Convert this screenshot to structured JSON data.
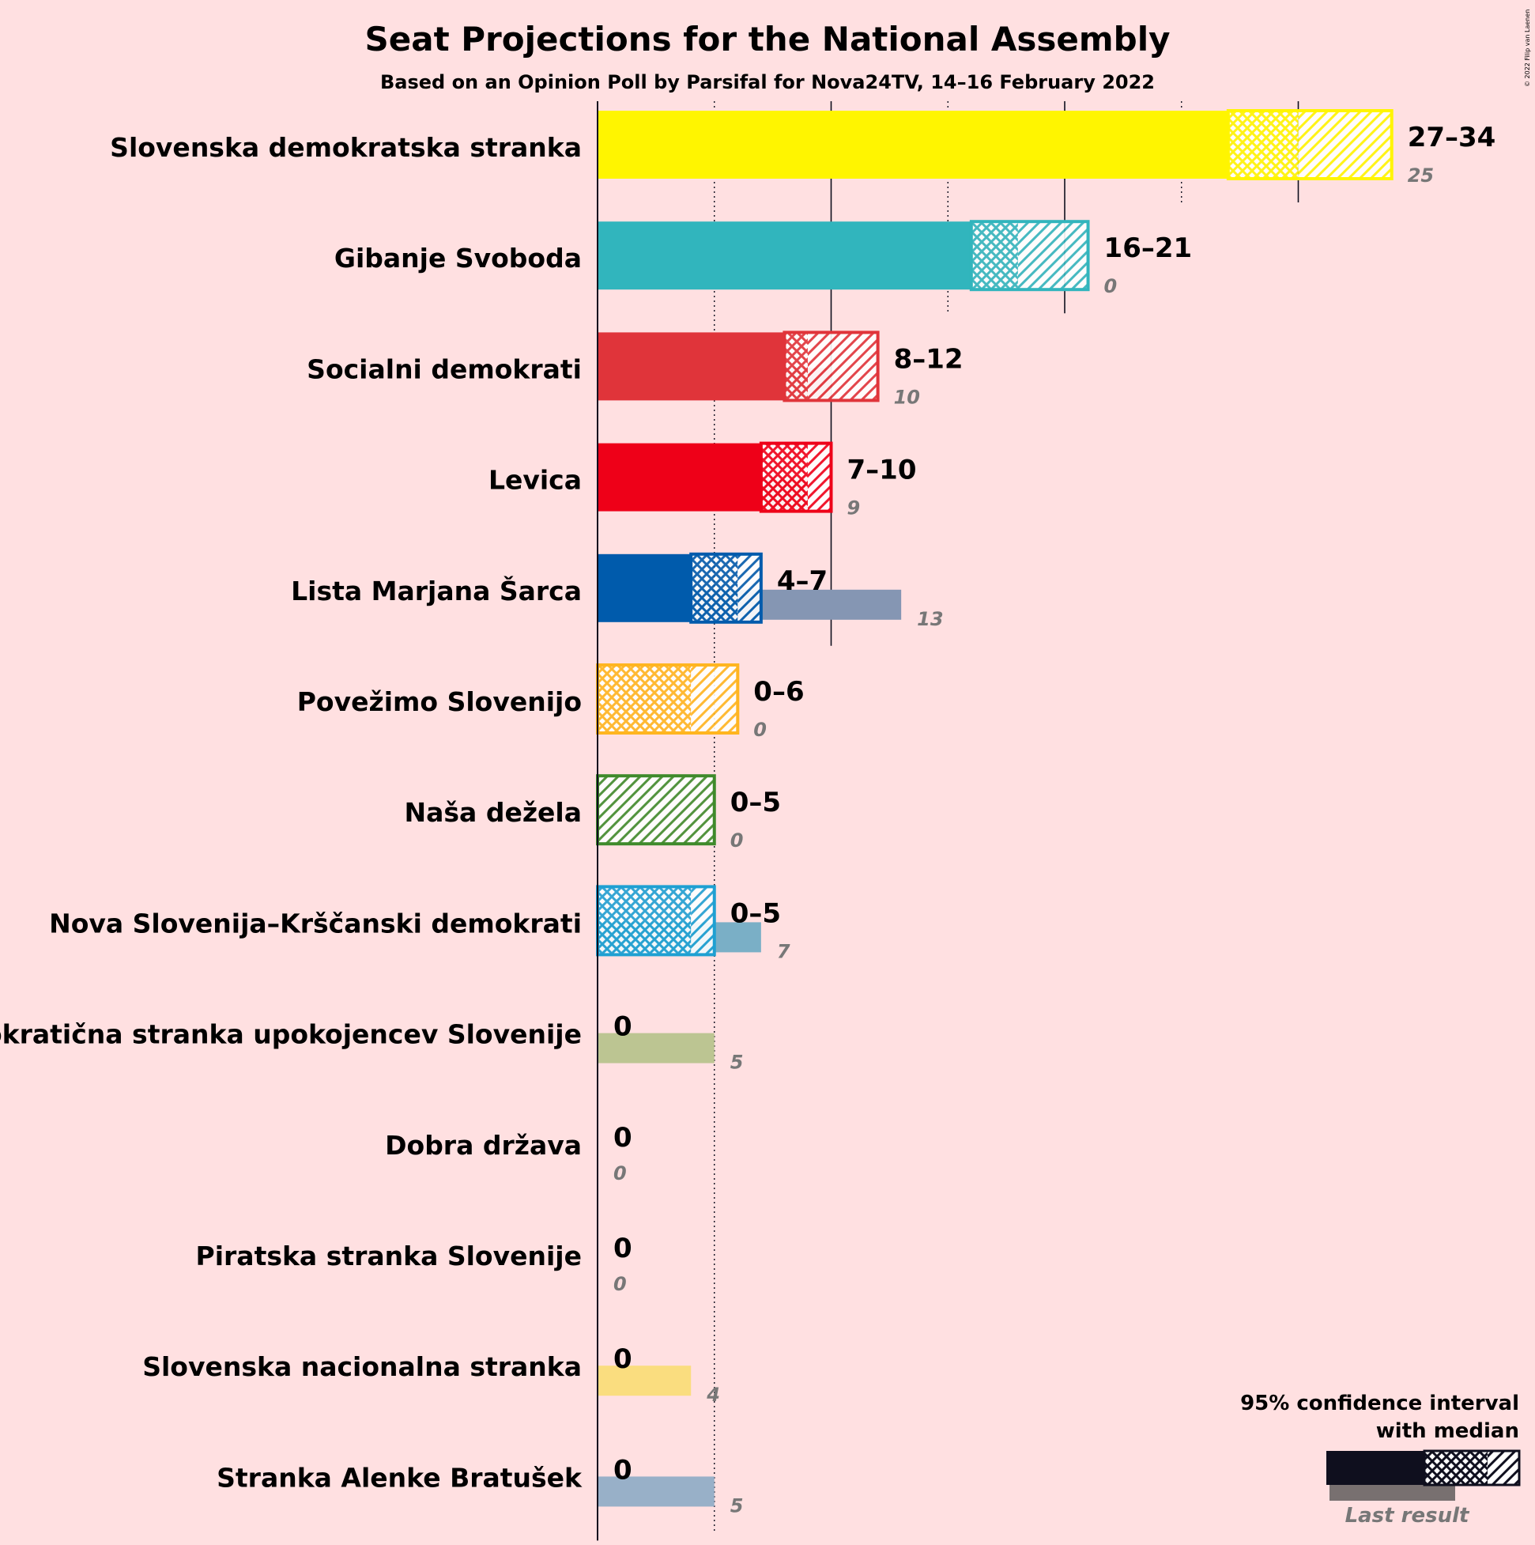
{
  "chart_data": {
    "type": "bar",
    "title": "Seat Projections for the National Assembly",
    "subtitle": "Based on an Opinion Poll by Parsifal for Nova24TV, 14–16 February 2022",
    "copyright": "© 2022 Filip van Laenen",
    "x_range": [
      0,
      36
    ],
    "gridlines": [
      5,
      10,
      15,
      20,
      25,
      30
    ],
    "majority": 46,
    "legend": {
      "line1": "95% confidence interval",
      "line2": "with median",
      "last_result": "Last result",
      "position": "bottom-right"
    },
    "parties": [
      {
        "name": "Slovenska demokratska stranka",
        "low": 27,
        "ci_low": 27,
        "median": 30,
        "ci_high": 34,
        "range_label": "27–34",
        "last": 25,
        "last_label": "25",
        "color": "#FFF500",
        "last_color": "#EAD87A"
      },
      {
        "name": "Gibanje Svoboda",
        "low": 16,
        "ci_low": 16,
        "median": 18,
        "ci_high": 21,
        "range_label": "16–21",
        "last": 0,
        "last_label": "0",
        "color": "#31B5BD",
        "last_color": "#31B5BD"
      },
      {
        "name": "Socialni demokrati",
        "low": 8,
        "ci_low": 8,
        "median": 9,
        "ci_high": 12,
        "range_label": "8–12",
        "last": 10,
        "last_label": "10",
        "color": "#E0343A",
        "last_color": "#E58185"
      },
      {
        "name": "Levica",
        "low": 7,
        "ci_low": 7,
        "median": 9,
        "ci_high": 10,
        "range_label": "7–10",
        "last": 9,
        "last_label": "9",
        "color": "#EE0018",
        "last_color": "#E2777F"
      },
      {
        "name": "Lista Marjana Šarca",
        "low": 4,
        "ci_low": 4,
        "median": 6,
        "ci_high": 7,
        "range_label": "4–7",
        "last": 13,
        "last_label": "13",
        "color": "#005BAC",
        "last_color": "#8596B3"
      },
      {
        "name": "Povežimo Slovenijo",
        "low": 0,
        "ci_low": 0,
        "median": 4,
        "ci_high": 6,
        "range_label": "0–6",
        "last": 0,
        "last_label": "0",
        "color": "#FFB520",
        "last_color": "#FFB520"
      },
      {
        "name": "Naša dežela",
        "low": 0,
        "ci_low": 0,
        "median": 0,
        "ci_high": 5,
        "range_label": "0–5",
        "last": 0,
        "last_label": "0",
        "color": "#3F8A2B",
        "last_color": "#3F8A2B"
      },
      {
        "name": "Nova Slovenija–Krščanski demokrati",
        "low": 0,
        "ci_low": 0,
        "median": 4,
        "ci_high": 5,
        "range_label": "0–5",
        "last": 7,
        "last_label": "7",
        "color": "#1EA0D2",
        "last_color": "#7AAFC6"
      },
      {
        "name": "Demokratična stranka upokojencev Slovenije",
        "low": 0,
        "ci_low": 0,
        "median": 0,
        "ci_high": 0,
        "range_label": "0",
        "last": 5,
        "last_label": "5",
        "color": "#8DAA3F",
        "last_color": "#BCC592"
      },
      {
        "name": "Dobra država",
        "low": 0,
        "ci_low": 0,
        "median": 0,
        "ci_high": 0,
        "range_label": "0",
        "last": 0,
        "last_label": "0",
        "color": "#888888",
        "last_color": "#888888"
      },
      {
        "name": "Piratska stranka Slovenije",
        "low": 0,
        "ci_low": 0,
        "median": 0,
        "ci_high": 0,
        "range_label": "0",
        "last": 0,
        "last_label": "0",
        "color": "#888888",
        "last_color": "#888888"
      },
      {
        "name": "Slovenska nacionalna stranka",
        "low": 0,
        "ci_low": 0,
        "median": 0,
        "ci_high": 0,
        "range_label": "0",
        "last": 4,
        "last_label": "4",
        "color": "#FFD400",
        "last_color": "#FADD7F"
      },
      {
        "name": "Stranka Alenke Bratušek",
        "low": 0,
        "ci_low": 0,
        "median": 0,
        "ci_high": 0,
        "range_label": "0",
        "last": 5,
        "last_label": "5",
        "color": "#4F7AA9",
        "last_color": "#98B0C8"
      }
    ]
  }
}
